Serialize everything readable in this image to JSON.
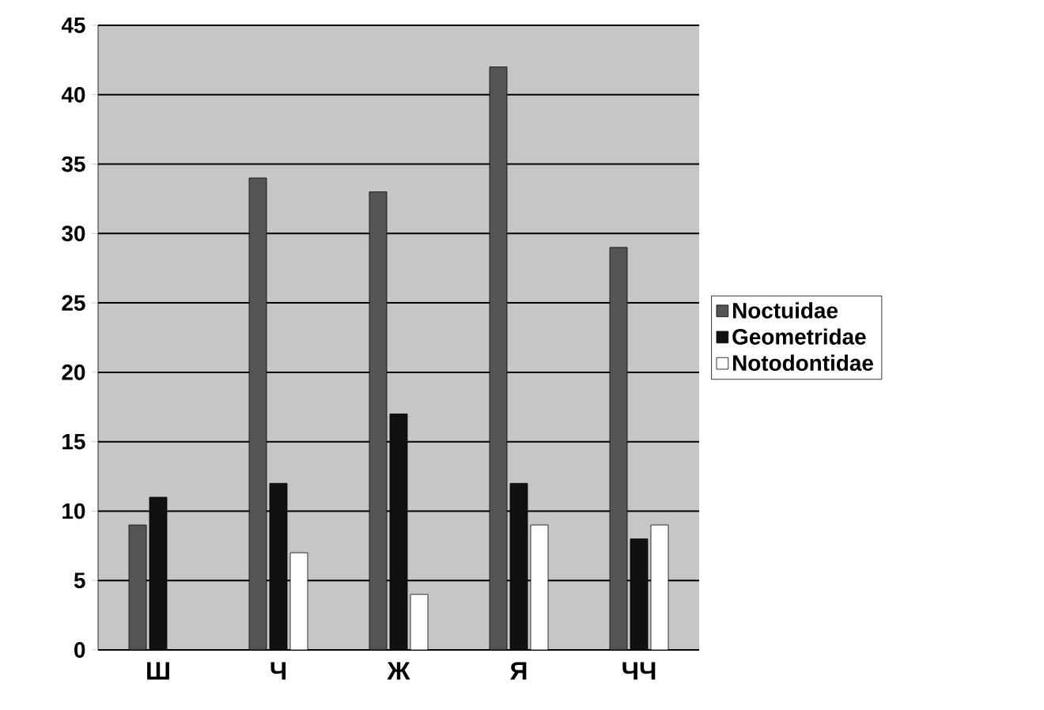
{
  "chart_data": {
    "type": "bar",
    "categories": [
      "Ш",
      "Ч",
      "Ж",
      "Я",
      "ЧЧ"
    ],
    "series": [
      {
        "name": "Noctuidae",
        "color": "#555555",
        "values": [
          9,
          34,
          33,
          42,
          29
        ]
      },
      {
        "name": "Geometridae",
        "color": "#111111",
        "values": [
          11,
          12,
          17,
          12,
          8
        ]
      },
      {
        "name": "Notodontidae",
        "color": "#ffffff",
        "values": [
          0,
          7,
          4,
          9,
          9
        ]
      }
    ],
    "ylim": [
      0,
      45
    ],
    "yticks": [
      0,
      5,
      10,
      15,
      20,
      25,
      30,
      35,
      40,
      45
    ],
    "grid": "y",
    "legend": "right"
  }
}
